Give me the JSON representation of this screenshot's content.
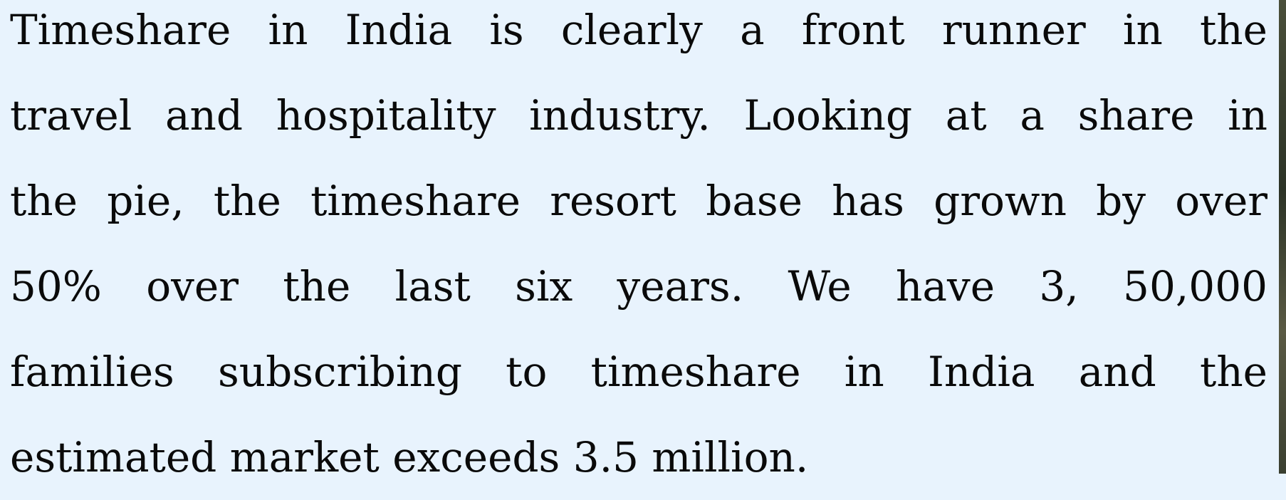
{
  "paragraph": {
    "lines": [
      "Timeshare in India is clearly a front runner in the",
      "travel and hospitality industry. Looking at a share in",
      "the pie, the timeshare resort base has grown by over",
      "50% over the last six years. We have 3, 50,000",
      "families subscribing to timeshare in India and the",
      "estimated market exceeds 3.5 million."
    ]
  }
}
